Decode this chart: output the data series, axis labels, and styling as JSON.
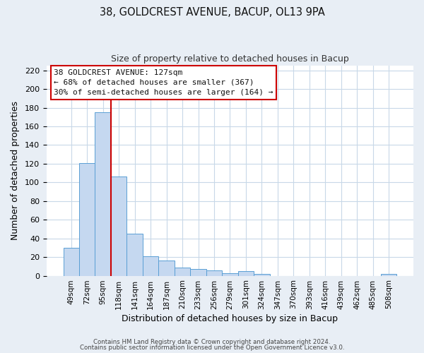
{
  "title1": "38, GOLDCREST AVENUE, BACUP, OL13 9PA",
  "title2": "Size of property relative to detached houses in Bacup",
  "xlabel": "Distribution of detached houses by size in Bacup",
  "ylabel": "Number of detached properties",
  "bar_labels": [
    "49sqm",
    "72sqm",
    "95sqm",
    "118sqm",
    "141sqm",
    "164sqm",
    "187sqm",
    "210sqm",
    "233sqm",
    "256sqm",
    "279sqm",
    "301sqm",
    "324sqm",
    "347sqm",
    "370sqm",
    "393sqm",
    "416sqm",
    "439sqm",
    "462sqm",
    "485sqm",
    "508sqm"
  ],
  "bar_values": [
    30,
    121,
    175,
    106,
    45,
    21,
    16,
    9,
    7,
    6,
    3,
    5,
    2,
    0,
    0,
    0,
    0,
    0,
    0,
    0,
    2
  ],
  "bar_color": "#c5d8f0",
  "bar_edge_color": "#5a9fd4",
  "ylim": [
    0,
    225
  ],
  "yticks": [
    0,
    20,
    40,
    60,
    80,
    100,
    120,
    140,
    160,
    180,
    200,
    220
  ],
  "vline_color": "#cc0000",
  "vline_pos": 2.5,
  "annotation_title": "38 GOLDCREST AVENUE: 127sqm",
  "annotation_line1": "← 68% of detached houses are smaller (367)",
  "annotation_line2": "30% of semi-detached houses are larger (164) →",
  "footer1": "Contains HM Land Registry data © Crown copyright and database right 2024.",
  "footer2": "Contains public sector information licensed under the Open Government Licence v3.0.",
  "background_color": "#e8eef5",
  "plot_bg_color": "#ffffff",
  "grid_color": "#c8d8e8"
}
